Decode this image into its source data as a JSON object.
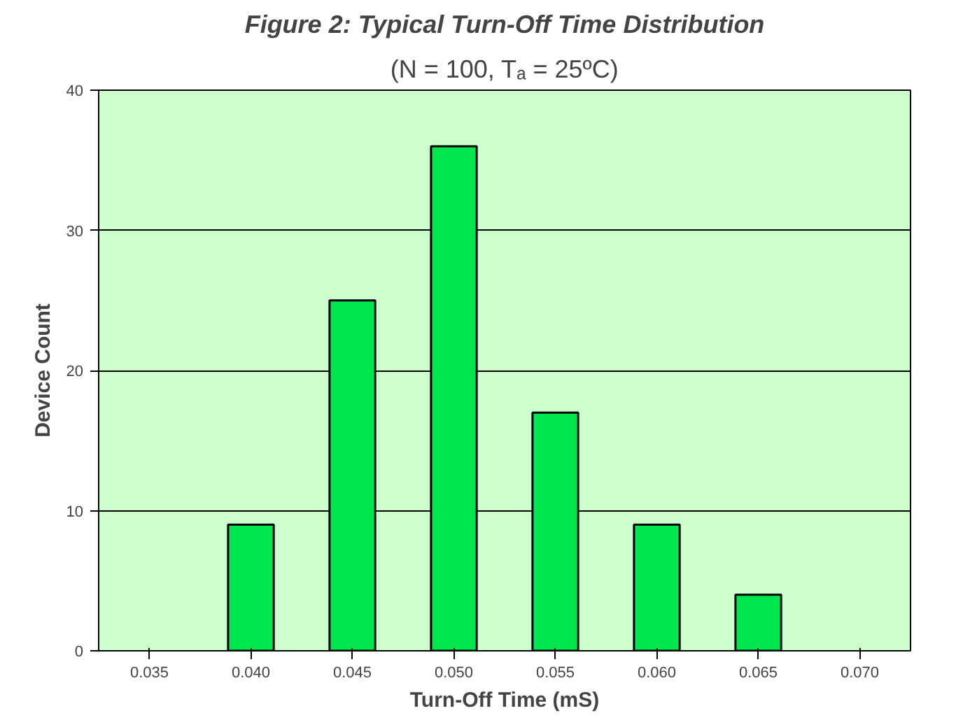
{
  "chart_data": {
    "type": "bar",
    "title": "Figure 2: Typical Turn-Off Time Distribution",
    "subtitle": "(N = 100, Tₐ = 25ºC)",
    "xlabel": "Turn-Off Time (mS)",
    "ylabel": "Device Count",
    "categories": [
      "0.035",
      "0.040",
      "0.045",
      "0.050",
      "0.055",
      "0.060",
      "0.065",
      "0.070"
    ],
    "values": [
      0,
      9,
      25,
      36,
      17,
      9,
      4,
      0
    ],
    "color": "#00e64d",
    "ylim": [
      0,
      40
    ],
    "yticks": [
      0,
      10,
      20,
      30,
      40
    ],
    "grid": "y"
  }
}
